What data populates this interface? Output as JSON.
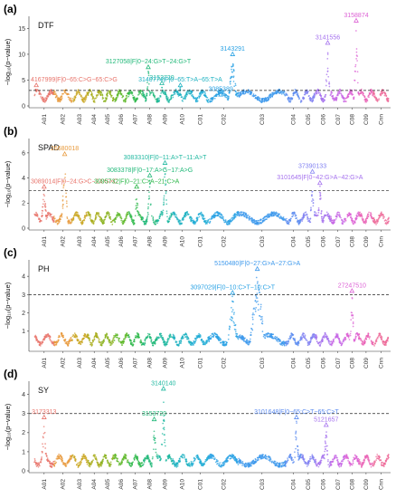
{
  "figure": {
    "chromosomes": [
      "A01",
      "A02",
      "A03",
      "A04",
      "A05",
      "A06",
      "A07",
      "A08",
      "A09",
      "A10",
      "C01",
      "C02",
      "C03",
      "C04",
      "C05",
      "C06",
      "C07",
      "C08",
      "C09",
      "Cnn"
    ],
    "chromosome_colors": [
      "#e8746b",
      "#e89a3c",
      "#c9a520",
      "#a8ac1a",
      "#8ab21e",
      "#5fb82a",
      "#2eb84a",
      "#20b878",
      "#1fb8a0",
      "#1fb2c2",
      "#20acd6",
      "#2aa2e4",
      "#3c98ec",
      "#5c8cf0",
      "#8080f2",
      "#a470ee",
      "#c566e6",
      "#dc60d4",
      "#ea62b6",
      "#ee6a98"
    ],
    "ylabel": "−log₁₀(p−value)"
  },
  "chart_data": [
    {
      "type": "scatter",
      "panel_label": "(a)",
      "trait": "DTF",
      "ylim": [
        0,
        17
      ],
      "yticks": [
        0,
        5,
        10,
        15
      ],
      "threshold": 3,
      "points": [
        {
          "chrom": "A01",
          "pos": 0.1,
          "y": 4.0,
          "label": "4167999|F|0−65:C>G−65:C>G"
        },
        {
          "chrom": "A08",
          "pos": 0.4,
          "y": 7.5,
          "label": "3127058|F|0−24:G>T−24:G>T"
        },
        {
          "chrom": "A09",
          "pos": 0.3,
          "y": 4.4,
          "label": "3153720"
        },
        {
          "chrom": "A10",
          "pos": 0.4,
          "y": 4.0,
          "label": "3140774|F|0−65:T>A−65:T>A"
        },
        {
          "chrom": "C02",
          "pos": 0.4,
          "y": 2.2,
          "label": "3085389"
        },
        {
          "chrom": "C02",
          "pos": 0.8,
          "y": 10.0,
          "label": "3143291"
        },
        {
          "chrom": "C06",
          "pos": 0.8,
          "y": 12.2,
          "label": "3141556"
        },
        {
          "chrom": "C08",
          "pos": 0.8,
          "y": 16.5,
          "label": "3158874"
        }
      ]
    },
    {
      "type": "scatter",
      "panel_label": "(b)",
      "trait": "SPAD",
      "ylim": [
        0,
        7
      ],
      "yticks": [
        0,
        2,
        4,
        6
      ],
      "threshold": 3,
      "points": [
        {
          "chrom": "A01",
          "pos": 0.5,
          "y": 3.3,
          "label": "3089014|F|0−24:G>C−24:G>C"
        },
        {
          "chrom": "A02",
          "pos": 0.6,
          "y": 5.9,
          "label": "26680018"
        },
        {
          "chrom": "A07",
          "pos": 0.6,
          "y": 3.3,
          "label": "3095732|F|0−21:C>A−21:C>A"
        },
        {
          "chrom": "A08",
          "pos": 0.5,
          "y": 4.2,
          "label": "3083378|F|0−17:A>G−17:A>G"
        },
        {
          "chrom": "A09",
          "pos": 0.5,
          "y": 5.2,
          "label": "3083310|F|0−11:A>T−11:A>T"
        },
        {
          "chrom": "C05",
          "pos": 0.8,
          "y": 4.5,
          "label": "37390133"
        },
        {
          "chrom": "C06",
          "pos": 0.3,
          "y": 3.6,
          "label": "3101645|F|0−42:G>A−42:G>A"
        }
      ]
    },
    {
      "type": "scatter",
      "panel_label": "(c)",
      "trait": "PH",
      "ylim": [
        0,
        4.8
      ],
      "yticks": [
        1,
        2,
        3,
        4
      ],
      "threshold": 3,
      "points": [
        {
          "chrom": "C02",
          "pos": 0.8,
          "y": 3.1,
          "label": "3097029|F|0−10:C>T−10:C>T"
        },
        {
          "chrom": "C03",
          "pos": 0.4,
          "y": 4.4,
          "label": "5150480|F|0−27:G>A−27:G>A"
        },
        {
          "chrom": "C08",
          "pos": 0.5,
          "y": 3.2,
          "label": "27247510"
        }
      ]
    },
    {
      "type": "scatter",
      "panel_label": "(d)",
      "trait": "SY",
      "ylim": [
        0,
        4.6
      ],
      "yticks": [
        0,
        1,
        2,
        3,
        4
      ],
      "threshold": 3,
      "points": [
        {
          "chrom": "A01",
          "pos": 0.5,
          "y": 2.8,
          "label": "3173313"
        },
        {
          "chrom": "A08",
          "pos": 0.8,
          "y": 2.7,
          "label": "3153720"
        },
        {
          "chrom": "A09",
          "pos": 0.4,
          "y": 4.3,
          "label": "3140140"
        },
        {
          "chrom": "C04",
          "pos": 0.7,
          "y": 2.8,
          "label": "3101648|F|0−65:C>T−65:C>T"
        },
        {
          "chrom": "C06",
          "pos": 0.7,
          "y": 2.4,
          "label": "5121657"
        }
      ]
    }
  ]
}
